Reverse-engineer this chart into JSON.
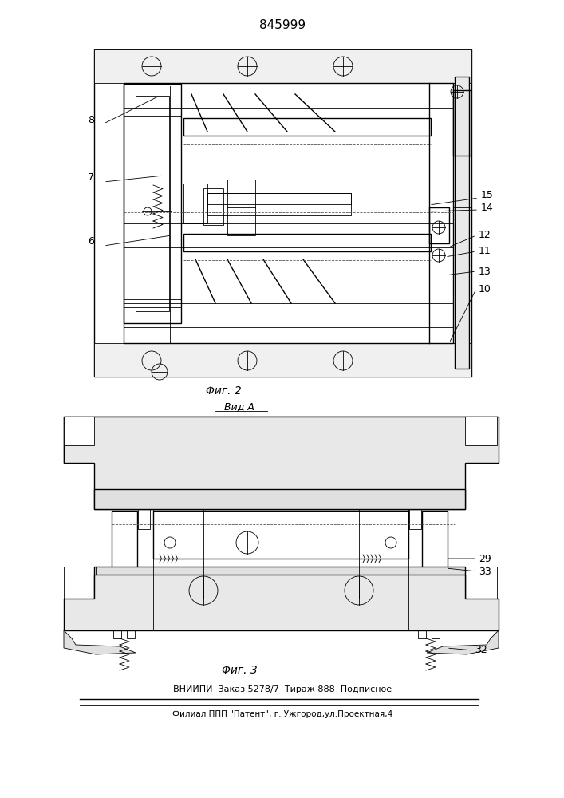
{
  "title": "845999",
  "fig2_label": "Φиг. 2",
  "fig3_label": "Φиг. 3",
  "vida_label": "Вид А",
  "footer_line1": "ВНИИПИ  Заказ 5278/7  Тираж 888  Подписное",
  "footer_line2": "Филиал ППП \"Патент\", г. Ужгород,ул.Проектная,4",
  "bg_color": "#ffffff",
  "lc": "#000000"
}
